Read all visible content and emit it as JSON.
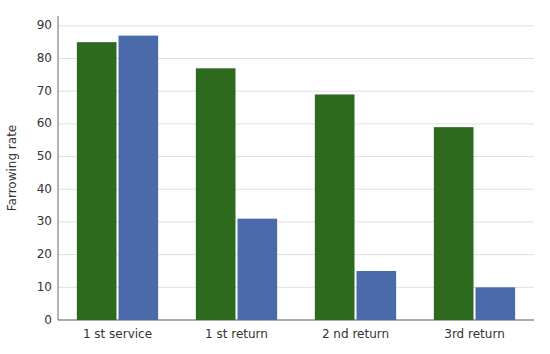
{
  "chart_data": {
    "type": "bar",
    "ylabel": "Farrowing rate",
    "categories": [
      "1 st service",
      "1 st return",
      "2 nd return",
      "3rd return"
    ],
    "series": [
      {
        "color": "#2d6a1e",
        "values": [
          85,
          77,
          69,
          59
        ]
      },
      {
        "color": "#4a6aaa",
        "values": [
          87,
          31,
          15,
          10
        ]
      }
    ],
    "ylim": [
      0,
      93
    ],
    "yticks": [
      0,
      10,
      20,
      30,
      40,
      50,
      60,
      70,
      80,
      90
    ],
    "grid": true
  }
}
